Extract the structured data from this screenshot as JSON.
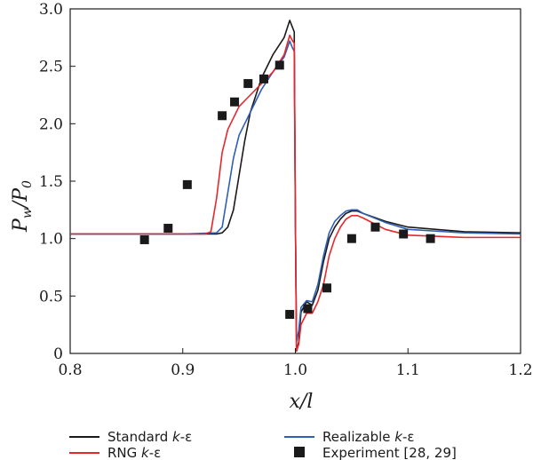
{
  "chart_data": {
    "type": "line",
    "xlabel": "x/l",
    "ylabel_main": "P",
    "ylabel_sub1": "w",
    "ylabel_mid": "/P",
    "ylabel_sub2": "0",
    "xlim": [
      0.8,
      1.2
    ],
    "ylim": [
      0,
      3.0
    ],
    "xticks": [
      "0.8",
      "0.9",
      "1.0",
      "1.1",
      "1.2"
    ],
    "yticks": [
      "0",
      "0.5",
      "1.0",
      "1.5",
      "2.0",
      "2.5",
      "3.0"
    ],
    "grid": false,
    "legend_position": "bottom",
    "series": [
      {
        "name": "Standard k-ε",
        "legend_prefix": "Standard ",
        "legend_italic": "k",
        "legend_suffix": "-ε",
        "color": "#1a1a1a",
        "x": [
          0.8,
          0.9,
          0.93,
          0.935,
          0.94,
          0.945,
          0.95,
          0.955,
          0.96,
          0.97,
          0.98,
          0.99,
          0.995,
          0.997,
          0.999,
          1.0,
          1.001,
          1.003,
          1.005,
          1.01,
          1.015,
          1.02,
          1.025,
          1.03,
          1.035,
          1.04,
          1.045,
          1.05,
          1.055,
          1.06,
          1.08,
          1.1,
          1.15,
          1.2
        ],
        "y": [
          1.04,
          1.04,
          1.04,
          1.05,
          1.1,
          1.25,
          1.55,
          1.85,
          2.1,
          2.4,
          2.6,
          2.75,
          2.9,
          2.85,
          2.8,
          1.2,
          0.02,
          0.1,
          0.36,
          0.45,
          0.42,
          0.55,
          0.8,
          1.0,
          1.1,
          1.17,
          1.22,
          1.24,
          1.24,
          1.22,
          1.15,
          1.1,
          1.06,
          1.05
        ]
      },
      {
        "name": "RNG k-ε",
        "legend_prefix": "RNG ",
        "legend_italic": "k",
        "legend_suffix": "-ε",
        "color": "#e8262b",
        "x": [
          0.8,
          0.9,
          0.92,
          0.925,
          0.93,
          0.935,
          0.94,
          0.95,
          0.96,
          0.97,
          0.98,
          0.99,
          0.995,
          0.997,
          0.999,
          1.0,
          1.001,
          1.003,
          1.005,
          1.01,
          1.015,
          1.02,
          1.025,
          1.03,
          1.035,
          1.04,
          1.045,
          1.05,
          1.055,
          1.06,
          1.08,
          1.1,
          1.15,
          1.2
        ],
        "y": [
          1.04,
          1.04,
          1.04,
          1.06,
          1.35,
          1.75,
          1.95,
          2.15,
          2.25,
          2.35,
          2.45,
          2.6,
          2.77,
          2.73,
          2.7,
          1.2,
          0.02,
          0.08,
          0.25,
          0.35,
          0.35,
          0.45,
          0.6,
          0.85,
          1.0,
          1.1,
          1.17,
          1.2,
          1.2,
          1.18,
          1.08,
          1.03,
          1.01,
          1.01
        ]
      },
      {
        "name": "Realizable k-ε",
        "legend_prefix": "Realizable ",
        "legend_italic": "k",
        "legend_suffix": "-ε",
        "color": "#2f5fb3",
        "x": [
          0.8,
          0.9,
          0.93,
          0.935,
          0.94,
          0.945,
          0.95,
          0.955,
          0.96,
          0.97,
          0.98,
          0.99,
          0.995,
          0.997,
          0.999,
          1.0,
          1.001,
          1.003,
          1.005,
          1.01,
          1.015,
          1.02,
          1.025,
          1.03,
          1.035,
          1.04,
          1.045,
          1.05,
          1.055,
          1.06,
          1.08,
          1.1,
          1.15,
          1.2
        ],
        "y": [
          1.04,
          1.04,
          1.05,
          1.1,
          1.4,
          1.7,
          1.9,
          2.0,
          2.1,
          2.3,
          2.45,
          2.58,
          2.72,
          2.67,
          2.63,
          1.2,
          0.1,
          0.2,
          0.4,
          0.46,
          0.45,
          0.6,
          0.85,
          1.05,
          1.15,
          1.2,
          1.24,
          1.25,
          1.25,
          1.22,
          1.14,
          1.08,
          1.05,
          1.04
        ]
      }
    ],
    "experiment": {
      "name": "Experiment [28, 29]",
      "color": "#1a1a1a",
      "x": [
        0.866,
        0.887,
        0.904,
        0.935,
        0.946,
        0.958,
        0.972,
        0.986,
        0.995,
        1.011,
        1.028,
        1.05,
        1.071,
        1.096,
        1.12
      ],
      "y": [
        0.99,
        1.09,
        1.47,
        2.07,
        2.19,
        2.35,
        2.39,
        2.51,
        0.34,
        0.39,
        0.57,
        1.0,
        1.1,
        1.04,
        1.0
      ]
    }
  }
}
